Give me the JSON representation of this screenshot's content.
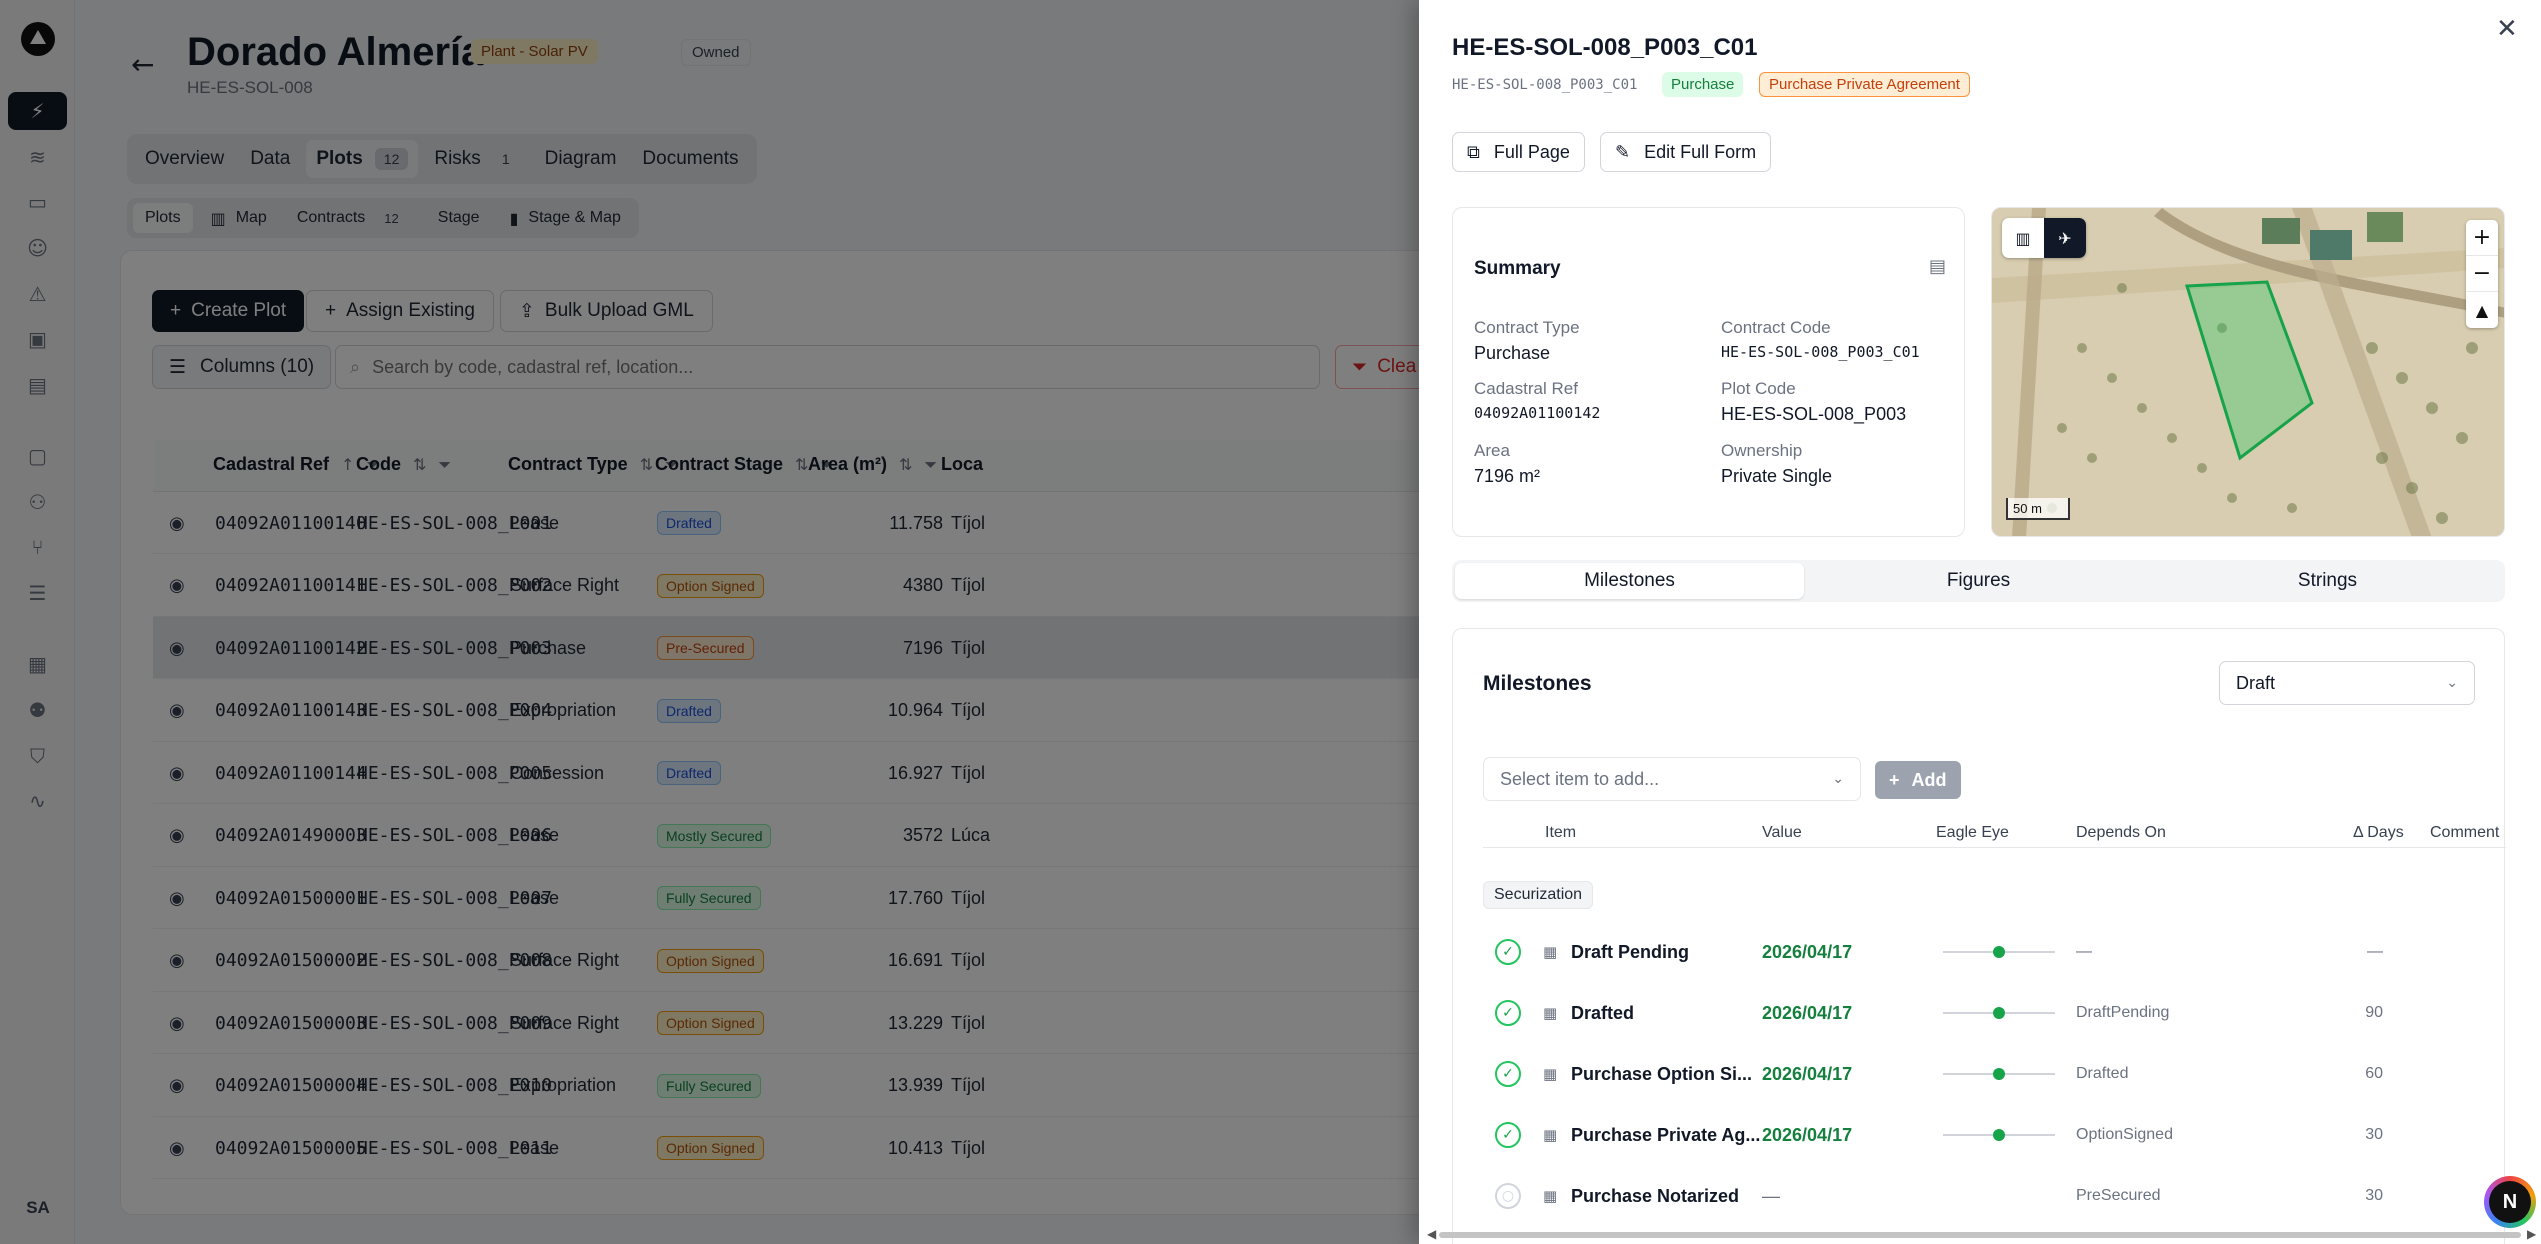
{
  "rail": {
    "avatar": "SA"
  },
  "page": {
    "title": "Dorado Almería",
    "badge_type": "Plant - Solar PV",
    "badge_owned": "Owned",
    "code": "HE-ES-SOL-008"
  },
  "tabs": [
    {
      "label": "Overview",
      "count": ""
    },
    {
      "label": "Data",
      "count": ""
    },
    {
      "label": "Plots",
      "count": "12"
    },
    {
      "label": "Risks",
      "count": "1"
    },
    {
      "label": "Diagram",
      "count": ""
    },
    {
      "label": "Documents",
      "count": ""
    }
  ],
  "subtabs": [
    {
      "label": "Plots",
      "count": ""
    },
    {
      "label": "Map",
      "count": ""
    },
    {
      "label": "Contracts",
      "count": "12"
    },
    {
      "label": "Stage",
      "count": ""
    },
    {
      "label": "Stage & Map",
      "count": ""
    }
  ],
  "toolbar": {
    "create": "Create Plot",
    "assign": "Assign Existing",
    "bulk": "Bulk Upload GML",
    "columns": "Columns (10)",
    "search_placeholder": "Search by code, cadastral ref, location...",
    "clear": "Clea"
  },
  "table": {
    "headers": [
      "Cadastral Ref",
      "Code",
      "Contract Type",
      "Contract Stage",
      "Area (m²)",
      "Loca"
    ],
    "rows": [
      {
        "ref": "04092A01100140",
        "code": "HE-ES-SOL-008_P001",
        "type": "Lease",
        "stage": "Drafted",
        "area": "11.758",
        "loc": "Tíjol"
      },
      {
        "ref": "04092A01100141",
        "code": "HE-ES-SOL-008_P002",
        "type": "Surface Right",
        "stage": "Option Signed",
        "area": "4380",
        "loc": "Tíjol"
      },
      {
        "ref": "04092A01100142",
        "code": "HE-ES-SOL-008_P003",
        "type": "Purchase",
        "stage": "Pre-Secured",
        "area": "7196",
        "loc": "Tíjol"
      },
      {
        "ref": "04092A01100143",
        "code": "HE-ES-SOL-008_P004",
        "type": "Expropriation",
        "stage": "Drafted",
        "area": "10.964",
        "loc": "Tíjol"
      },
      {
        "ref": "04092A01100144",
        "code": "HE-ES-SOL-008_P005",
        "type": "Concession",
        "stage": "Drafted",
        "area": "16.927",
        "loc": "Tíjol"
      },
      {
        "ref": "04092A01490003",
        "code": "HE-ES-SOL-008_P006",
        "type": "Lease",
        "stage": "Mostly Secured",
        "area": "3572",
        "loc": "Lúca"
      },
      {
        "ref": "04092A01500001",
        "code": "HE-ES-SOL-008_P007",
        "type": "Lease",
        "stage": "Fully Secured",
        "area": "17.760",
        "loc": "Tíjol"
      },
      {
        "ref": "04092A01500002",
        "code": "HE-ES-SOL-008_P008",
        "type": "Surface Right",
        "stage": "Option Signed",
        "area": "16.691",
        "loc": "Tíjol"
      },
      {
        "ref": "04092A01500003",
        "code": "HE-ES-SOL-008_P009",
        "type": "Surface Right",
        "stage": "Option Signed",
        "area": "13.229",
        "loc": "Tíjol"
      },
      {
        "ref": "04092A01500004",
        "code": "HE-ES-SOL-008_P010",
        "type": "Expropriation",
        "stage": "Fully Secured",
        "area": "13.939",
        "loc": "Tíjol"
      },
      {
        "ref": "04092A01500005",
        "code": "HE-ES-SOL-008_P011",
        "type": "Lease",
        "stage": "Option Signed",
        "area": "10.413",
        "loc": "Tíjol"
      }
    ]
  },
  "panel": {
    "title": "HE-ES-SOL-008_P003_C01",
    "code": "HE-ES-SOL-008_P003_C01",
    "badge_type": "Purchase",
    "badge_agreement": "Purchase Private Agreement",
    "btn_full": "Full Page",
    "btn_edit": "Edit Full Form",
    "summary": {
      "title": "Summary",
      "contract_type_label": "Contract Type",
      "contract_type": "Purchase",
      "contract_code_label": "Contract Code",
      "contract_code": "HE-ES-SOL-008_P003_C01",
      "cadastral_label": "Cadastral Ref",
      "cadastral": "04092A01100142",
      "plot_code_label": "Plot Code",
      "plot_code": "HE-ES-SOL-008_P003",
      "area_label": "Area",
      "area": "7196 m²",
      "ownership_label": "Ownership",
      "ownership": "Private Single"
    },
    "map": {
      "scale": "50 m"
    },
    "tabs": [
      "Milestones",
      "Figures",
      "Strings"
    ],
    "milestones": {
      "title": "Milestones",
      "status": "Draft",
      "select_placeholder": "Select item to add...",
      "add": "Add",
      "headers": [
        "Item",
        "Value",
        "Eagle Eye",
        "Depends On",
        "Δ Days",
        "Comment"
      ],
      "group": "Securization",
      "rows": [
        {
          "item": "Draft Pending",
          "value": "2026/04/17",
          "depends": "—",
          "days": "—",
          "done": true,
          "eagle": 0.5
        },
        {
          "item": "Drafted",
          "value": "2026/04/17",
          "depends": "DraftPending",
          "days": "90",
          "done": true,
          "eagle": 0.5
        },
        {
          "item": "Purchase Option Si...",
          "value": "2026/04/17",
          "depends": "Drafted",
          "days": "60",
          "done": true,
          "eagle": 0.5
        },
        {
          "item": "Purchase Private Ag...",
          "value": "2026/04/17",
          "depends": "OptionSigned",
          "days": "30",
          "done": true,
          "eagle": 0.5
        },
        {
          "item": "Purchase Notarized",
          "value": "—",
          "depends": "PreSecured",
          "days": "30",
          "done": false,
          "eagle": null
        }
      ]
    },
    "assistant": "N"
  }
}
